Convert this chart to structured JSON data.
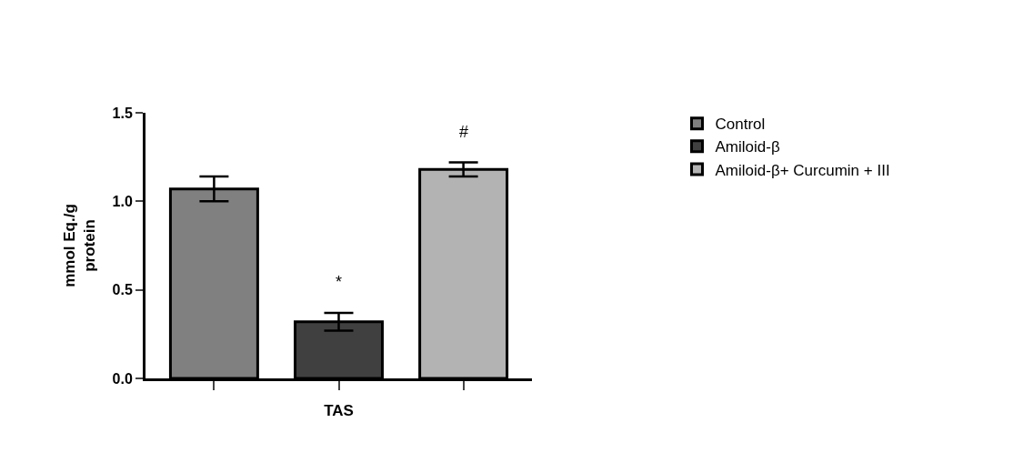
{
  "chart_data": {
    "type": "bar",
    "xlabel": "TAS",
    "ylabel": "mmol Eq./g\nprotein",
    "categories": [
      null,
      null,
      null
    ],
    "series": [
      {
        "name": "Control",
        "color": "#808080",
        "values": [
          1.07,
          null,
          null
        ],
        "errors": [
          0.07,
          null,
          null
        ]
      },
      {
        "name": "Amiloid-β",
        "color": "#404040",
        "values": [
          null,
          0.32,
          null
        ],
        "errors": [
          null,
          0.05,
          null
        ],
        "value_labels": [
          null,
          "*",
          null
        ]
      },
      {
        "name": "Amiloid-β+ Curcumin + III",
        "color": "#b3b3b3",
        "values": [
          null,
          null,
          1.18
        ],
        "errors": [
          null,
          null,
          0.04
        ],
        "value_labels": [
          null,
          null,
          "#"
        ]
      }
    ],
    "ylim": [
      0,
      1.5
    ],
    "yticks": [
      {
        "value": 0,
        "label": "0.0"
      },
      {
        "value": 0.5,
        "label": "0.5"
      },
      {
        "value": 1,
        "label": "1.0"
      },
      {
        "value": 1.5,
        "label": "1.5"
      }
    ],
    "legend": "right"
  }
}
